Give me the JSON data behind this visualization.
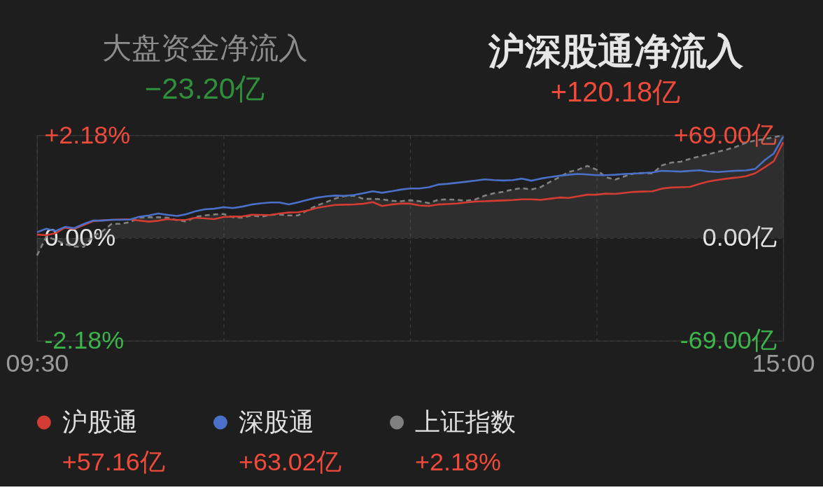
{
  "chart_data": {
    "type": "line",
    "title": "沪深股通净流入",
    "subtitle": "+120.18亿",
    "annotations": [
      "大盘资金净流入",
      "−23.20亿",
      "+57.16亿",
      "+63.02亿",
      "+2.18%"
    ],
    "categories": [
      "09:30",
      null,
      null,
      null,
      null,
      null,
      null,
      null,
      null,
      null,
      null,
      null,
      null,
      null,
      null,
      null,
      null,
      null,
      null,
      null,
      null,
      null,
      null,
      null,
      null,
      null,
      null,
      null,
      null,
      null,
      null,
      null,
      null,
      null,
      null,
      null,
      null,
      null,
      null,
      null,
      null,
      null,
      null,
      null,
      null,
      null,
      null,
      null,
      null,
      null,
      null,
      null,
      null,
      null,
      null,
      null,
      null,
      null,
      null,
      null,
      null,
      null,
      null,
      null,
      null,
      null,
      null,
      null,
      null,
      null,
      null,
      null,
      null,
      null,
      null,
      null,
      null,
      null,
      null,
      null,
      "15:00"
    ],
    "ylim": [
      -2.18,
      2.18
    ],
    "yticks": [
      {
        "value": 2.18,
        "label": "+2.18%"
      },
      {
        "value": 0,
        "label": "0.00%"
      },
      {
        "value": -2.18,
        "label": "-2.18%"
      }
    ],
    "y2lim": [
      -69,
      69
    ],
    "y2ticks": [
      {
        "value": 69,
        "label": "+69.00亿"
      },
      {
        "value": 0,
        "label": "0.00亿"
      },
      {
        "value": -69,
        "label": "-69.00亿"
      }
    ],
    "grid": true,
    "legend": "bottom",
    "series": [
      {
        "name": "沪股通",
        "color": "#d23c32",
        "axis": "y2",
        "values": [
          2.3,
          1.9,
          3.3,
          7.0,
          6.1,
          8.7,
          11.3,
          11.8,
          12.2,
          12.5,
          12.5,
          11.7,
          11.0,
          11.6,
          12.7,
          12.1,
          12.2,
          13.6,
          13.2,
          12.7,
          14.1,
          14.4,
          14.5,
          15.6,
          15.5,
          15.4,
          16.5,
          17.1,
          17.3,
          18.5,
          20.2,
          21.3,
          22.2,
          22.4,
          22.6,
          23.0,
          24.1,
          21.5,
          22.5,
          23.1,
          23.1,
          21.9,
          21.5,
          22.5,
          22.8,
          23.2,
          23.9,
          24.5,
          24.7,
          25.0,
          25.2,
          25.5,
          26.0,
          26.0,
          25.6,
          26.4,
          27.2,
          26.9,
          28.0,
          29.1,
          29.1,
          29.8,
          29.6,
          30.3,
          31.0,
          31.2,
          31.4,
          33.2,
          33.9,
          34.1,
          34.3,
          36.3,
          38.0,
          39.0,
          39.9,
          40.6,
          41.5,
          43.5,
          47.4,
          51.6,
          64.3
        ]
      },
      {
        "name": "深股通",
        "color": "#4a70c8",
        "axis": "y2",
        "values": [
          3.9,
          6.2,
          4.7,
          7.5,
          6.6,
          9.4,
          11.7,
          11.7,
          12.2,
          12.2,
          12.5,
          14.3,
          15.2,
          16.5,
          15.5,
          14.8,
          16.0,
          18.0,
          19.3,
          19.7,
          20.7,
          20.1,
          21.1,
          22.5,
          23.3,
          23.9,
          23.9,
          22.6,
          24.0,
          25.6,
          27.1,
          28.0,
          28.5,
          28.3,
          28.9,
          30.1,
          31.4,
          30.4,
          31.4,
          32.5,
          33.3,
          33.3,
          34.1,
          35.9,
          36.4,
          37.1,
          37.8,
          38.6,
          39.4,
          38.9,
          38.6,
          38.9,
          39.9,
          38.5,
          39.9,
          40.9,
          41.8,
          42.5,
          43.0,
          42.7,
          42.2,
          42.2,
          42.5,
          43.0,
          43.3,
          43.6,
          44.1,
          45.1,
          44.9,
          44.6,
          45.1,
          45.5,
          44.7,
          44.3,
          44.8,
          45.2,
          45.4,
          46.4,
          52.2,
          56.8,
          68.1
        ]
      },
      {
        "name": "上证指数",
        "color": "#808080",
        "type": "area",
        "line_style": "dashed",
        "values": [
          -0.37,
          0.03,
          -0.04,
          -0.13,
          -0.18,
          -0.19,
          0.04,
          0.14,
          0.3,
          0.3,
          0.34,
          0.43,
          0.44,
          0.44,
          0.43,
          0.38,
          0.35,
          0.45,
          0.48,
          0.5,
          0.51,
          0.44,
          0.43,
          0.48,
          0.45,
          0.49,
          0.5,
          0.48,
          0.48,
          0.59,
          0.69,
          0.76,
          0.84,
          0.89,
          0.9,
          0.83,
          0.83,
          0.82,
          0.79,
          0.78,
          0.8,
          0.78,
          0.74,
          0.81,
          0.82,
          0.81,
          0.79,
          0.82,
          0.9,
          0.95,
          0.98,
          1.03,
          1.06,
          1.03,
          1.08,
          1.19,
          1.29,
          1.4,
          1.45,
          1.53,
          1.45,
          1.29,
          1.24,
          1.31,
          1.37,
          1.38,
          1.37,
          1.54,
          1.6,
          1.62,
          1.68,
          1.73,
          1.78,
          1.83,
          1.88,
          1.94,
          2.02,
          2.07,
          2.1,
          2.14,
          2.18
        ]
      }
    ]
  }
}
